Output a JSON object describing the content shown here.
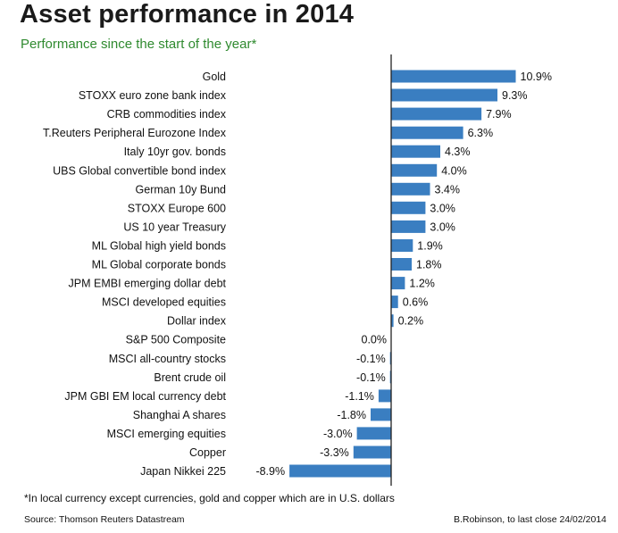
{
  "chart_data": {
    "type": "bar",
    "orientation": "horizontal",
    "title": "Asset performance in 2014",
    "subtitle": "Performance since the start of the year*",
    "categories": [
      "Gold",
      "STOXX euro zone bank index",
      "CRB commodities index",
      "T.Reuters Peripheral Eurozone Index",
      "Italy 10yr gov. bonds",
      "UBS Global convertible bond index",
      "German 10y Bund",
      "STOXX Europe 600",
      "US 10 year Treasury",
      "ML Global high yield bonds",
      "ML Global corporate bonds",
      "JPM EMBI emerging dollar debt",
      "MSCI developed equities",
      "Dollar index",
      "S&P 500 Composite",
      "MSCI all-country stocks",
      "Brent crude oil",
      "JPM GBI EM local currency debt",
      "Shanghai A shares",
      "MSCI emerging equities",
      "Copper",
      "Japan Nikkei 225"
    ],
    "values": [
      10.9,
      9.3,
      7.9,
      6.3,
      4.3,
      4.0,
      3.4,
      3.0,
      3.0,
      1.9,
      1.8,
      1.2,
      0.6,
      0.2,
      0.0,
      -0.1,
      -0.1,
      -1.1,
      -1.8,
      -3.0,
      -3.3,
      -8.9
    ],
    "value_labels": [
      "10.9%",
      "9.3%",
      "7.9%",
      "6.3%",
      "4.3%",
      "4.0%",
      "3.4%",
      "3.0%",
      "3.0%",
      "1.9%",
      "1.8%",
      "1.2%",
      "0.6%",
      "0.2%",
      "0.0%",
      "-0.1%",
      "-0.1%",
      "-1.1%",
      "-1.8%",
      "-3.0%",
      "-3.3%",
      "-8.9%"
    ],
    "unit": "%",
    "xlim": [
      -11.5,
      13.0
    ],
    "bar_color": "#3a7ec1",
    "grid": false,
    "legend": "none"
  },
  "footnote": "*In local currency except currencies, gold and copper which are in U.S. dollars",
  "source": "Source: Thomson Reuters Datastream",
  "credit": "B.Robinson, to last close 24/02/2014",
  "colors": {
    "title": "#1a1a1a",
    "subtitle": "#2f8a2f",
    "axis": "#222222"
  }
}
